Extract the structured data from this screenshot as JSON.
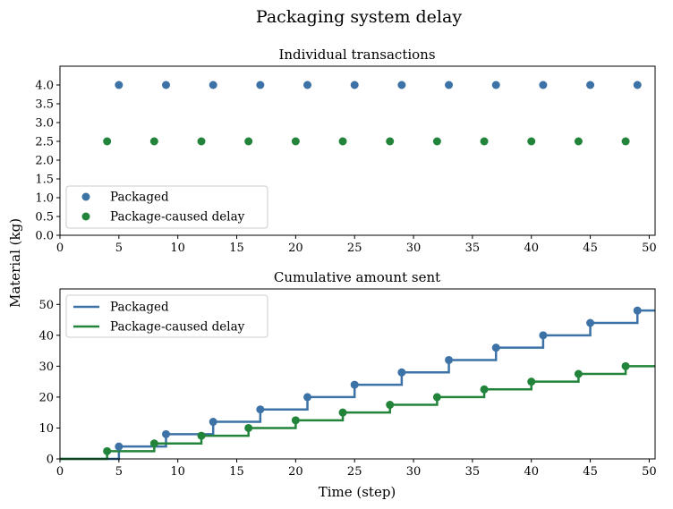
{
  "figure": {
    "title": "Packaging system delay",
    "ylabel": "Material (kg)",
    "xlabel": "Time (step)"
  },
  "colors": {
    "packaged": "#3c72a6",
    "delay": "#22843a"
  },
  "chart_data": [
    {
      "type": "scatter",
      "title": "Individual transactions",
      "xlim": [
        0,
        50.5
      ],
      "ylim": [
        0,
        4.5
      ],
      "x_ticks": [
        0,
        5,
        10,
        15,
        20,
        25,
        30,
        35,
        40,
        45,
        50
      ],
      "y_ticks": [
        0.0,
        0.5,
        1.0,
        1.5,
        2.0,
        2.5,
        3.0,
        3.5,
        4.0
      ],
      "y_tick_labels": [
        "0.0",
        "0.5",
        "1.0",
        "1.5",
        "2.0",
        "2.5",
        "3.0",
        "3.5",
        "4.0"
      ],
      "legend_location": "lower-left",
      "series": [
        {
          "name": "Packaged",
          "color": "#3c72a6",
          "x": [
            5,
            9,
            13,
            17,
            21,
            25,
            29,
            33,
            37,
            41,
            45,
            49
          ],
          "y": [
            4,
            4,
            4,
            4,
            4,
            4,
            4,
            4,
            4,
            4,
            4,
            4
          ]
        },
        {
          "name": "Package-caused delay",
          "color": "#22843a",
          "x": [
            4,
            8,
            12,
            16,
            20,
            24,
            28,
            32,
            36,
            40,
            44,
            48
          ],
          "y": [
            2.5,
            2.5,
            2.5,
            2.5,
            2.5,
            2.5,
            2.5,
            2.5,
            2.5,
            2.5,
            2.5,
            2.5
          ]
        }
      ]
    },
    {
      "type": "line",
      "step": "post",
      "title": "Cumulative amount sent",
      "xlim": [
        0,
        50.5
      ],
      "ylim": [
        0,
        55
      ],
      "x_ticks": [
        0,
        5,
        10,
        15,
        20,
        25,
        30,
        35,
        40,
        45,
        50
      ],
      "y_ticks": [
        0,
        10,
        20,
        30,
        40,
        50
      ],
      "y_tick_labels": [
        "0",
        "10",
        "20",
        "30",
        "40",
        "50"
      ],
      "legend_location": "upper-left",
      "series": [
        {
          "name": "Packaged",
          "color": "#3c72a6",
          "x": [
            5,
            9,
            13,
            17,
            21,
            25,
            29,
            33,
            37,
            41,
            45,
            49
          ],
          "y": [
            4,
            8,
            12,
            16,
            20,
            24,
            28,
            32,
            36,
            40,
            44,
            48
          ]
        },
        {
          "name": "Package-caused delay",
          "color": "#22843a",
          "x": [
            4,
            8,
            12,
            16,
            20,
            24,
            28,
            32,
            36,
            40,
            44,
            48
          ],
          "y": [
            2.5,
            5,
            7.5,
            10,
            12.5,
            15,
            17.5,
            20,
            22.5,
            25,
            27.5,
            30
          ]
        }
      ]
    }
  ]
}
